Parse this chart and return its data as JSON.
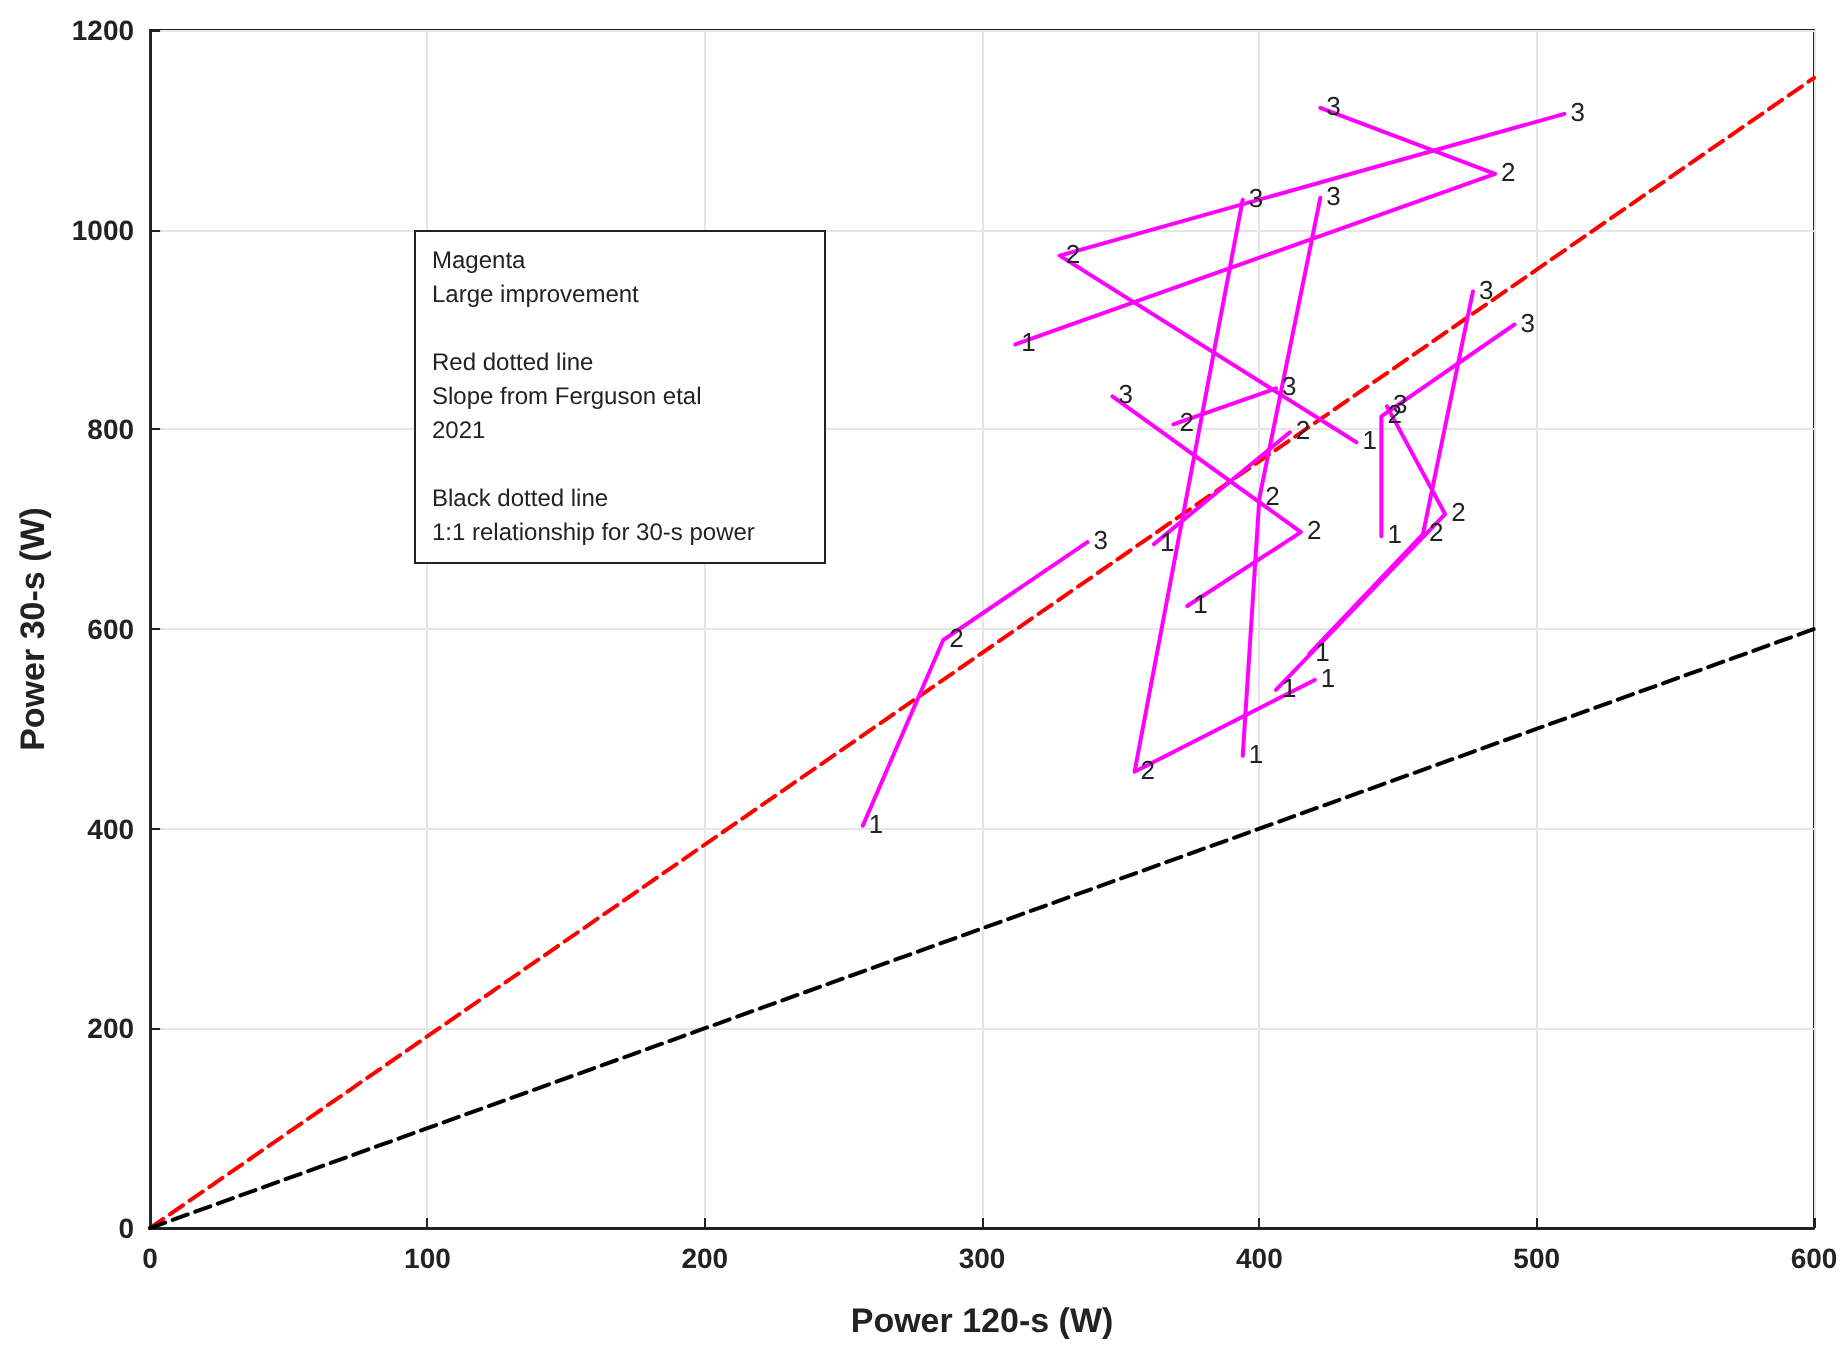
{
  "chart_data": {
    "type": "line",
    "xlabel": "Power 120-s (W)",
    "ylabel": "Power 30-s (W)",
    "xlim": [
      0,
      600
    ],
    "xticks": [
      0,
      100,
      200,
      300,
      400,
      500,
      600
    ],
    "ylim": [
      0,
      1200
    ],
    "yticks": [
      0,
      200,
      400,
      600,
      800,
      1000,
      1200
    ],
    "grid": true,
    "marker": "none",
    "annotations": [
      "Magenta\nLarge improvement",
      "Red dotted line\nSlope from Ferguson etal\n2021",
      "Black dotted line\n1:1 relationship for 30-s power",
      {
        "text": "1",
        "x": 257,
        "y": 403
      },
      {
        "text": "2",
        "x": 286,
        "y": 589
      },
      {
        "text": "3",
        "x": 338,
        "y": 687
      },
      {
        "text": "1",
        "x": 312,
        "y": 885
      },
      {
        "text": "2",
        "x": 485,
        "y": 1056
      },
      {
        "text": "3",
        "x": 422,
        "y": 1122
      },
      {
        "text": "1",
        "x": 435,
        "y": 787
      },
      {
        "text": "2",
        "x": 328,
        "y": 974
      },
      {
        "text": "3",
        "x": 510,
        "y": 1116
      },
      {
        "text": "1",
        "x": 420,
        "y": 549
      },
      {
        "text": "2",
        "x": 355,
        "y": 457
      },
      {
        "text": "3",
        "x": 394,
        "y": 1030
      },
      {
        "text": "1",
        "x": 394,
        "y": 473
      },
      {
        "text": "2",
        "x": 400,
        "y": 731
      },
      {
        "text": "3",
        "x": 422,
        "y": 1032
      },
      {
        "text": "1",
        "x": 374,
        "y": 623
      },
      {
        "text": "2",
        "x": 415,
        "y": 697
      },
      {
        "text": "3",
        "x": 347,
        "y": 833
      },
      {
        "text": "1",
        "x": 362,
        "y": 685
      },
      {
        "text": "2",
        "x": 411,
        "y": 797
      },
      {
        "text": "2",
        "x": 369,
        "y": 805
      },
      {
        "text": "3",
        "x": 406,
        "y": 841
      },
      {
        "text": "1",
        "x": 418,
        "y": 575
      },
      {
        "text": "2",
        "x": 459,
        "y": 695
      },
      {
        "text": "3",
        "x": 477,
        "y": 938
      },
      {
        "text": "1",
        "x": 406,
        "y": 539
      },
      {
        "text": "2",
        "x": 467,
        "y": 715
      },
      {
        "text": "3",
        "x": 446,
        "y": 823
      },
      {
        "text": "1",
        "x": 444,
        "y": 693
      },
      {
        "text": "2",
        "x": 444,
        "y": 813
      },
      {
        "text": "3",
        "x": 492,
        "y": 905
      }
    ],
    "series": [
      {
        "color": "#ff0000",
        "line_style": "dashed",
        "x": [
          0,
          600
        ],
        "values": [
          0,
          1152
        ]
      },
      {
        "color": "#000000",
        "line_style": "dashed",
        "x": [
          0,
          600
        ],
        "values": [
          0,
          600
        ]
      },
      {
        "color": "#ff00ff",
        "line_style": "solid",
        "x": [
          257,
          286,
          338
        ],
        "values": [
          403,
          589,
          687
        ]
      },
      {
        "color": "#ff00ff",
        "line_style": "solid",
        "x": [
          312,
          485,
          422
        ],
        "values": [
          885,
          1056,
          1122
        ]
      },
      {
        "color": "#ff00ff",
        "line_style": "solid",
        "x": [
          435,
          328,
          510
        ],
        "values": [
          787,
          974,
          1116
        ]
      },
      {
        "color": "#ff00ff",
        "line_style": "solid",
        "x": [
          420,
          355,
          394
        ],
        "values": [
          549,
          457,
          1030
        ]
      },
      {
        "color": "#ff00ff",
        "line_style": "solid",
        "x": [
          394,
          400,
          422
        ],
        "values": [
          473,
          731,
          1032
        ]
      },
      {
        "color": "#ff00ff",
        "line_style": "solid",
        "x": [
          374,
          415,
          347
        ],
        "values": [
          623,
          697,
          833
        ]
      },
      {
        "color": "#ff00ff",
        "line_style": "solid",
        "x": [
          362,
          411
        ],
        "values": [
          685,
          797
        ]
      },
      {
        "color": "#ff00ff",
        "line_style": "solid",
        "x": [
          369,
          406
        ],
        "values": [
          805,
          841
        ]
      },
      {
        "color": "#ff00ff",
        "line_style": "solid",
        "x": [
          418,
          459,
          477
        ],
        "values": [
          575,
          695,
          938
        ]
      },
      {
        "color": "#ff00ff",
        "line_style": "solid",
        "x": [
          406,
          467,
          446
        ],
        "values": [
          539,
          715,
          823
        ]
      },
      {
        "color": "#ff00ff",
        "line_style": "solid",
        "x": [
          444,
          444,
          492
        ],
        "values": [
          693,
          813,
          905
        ]
      }
    ]
  }
}
